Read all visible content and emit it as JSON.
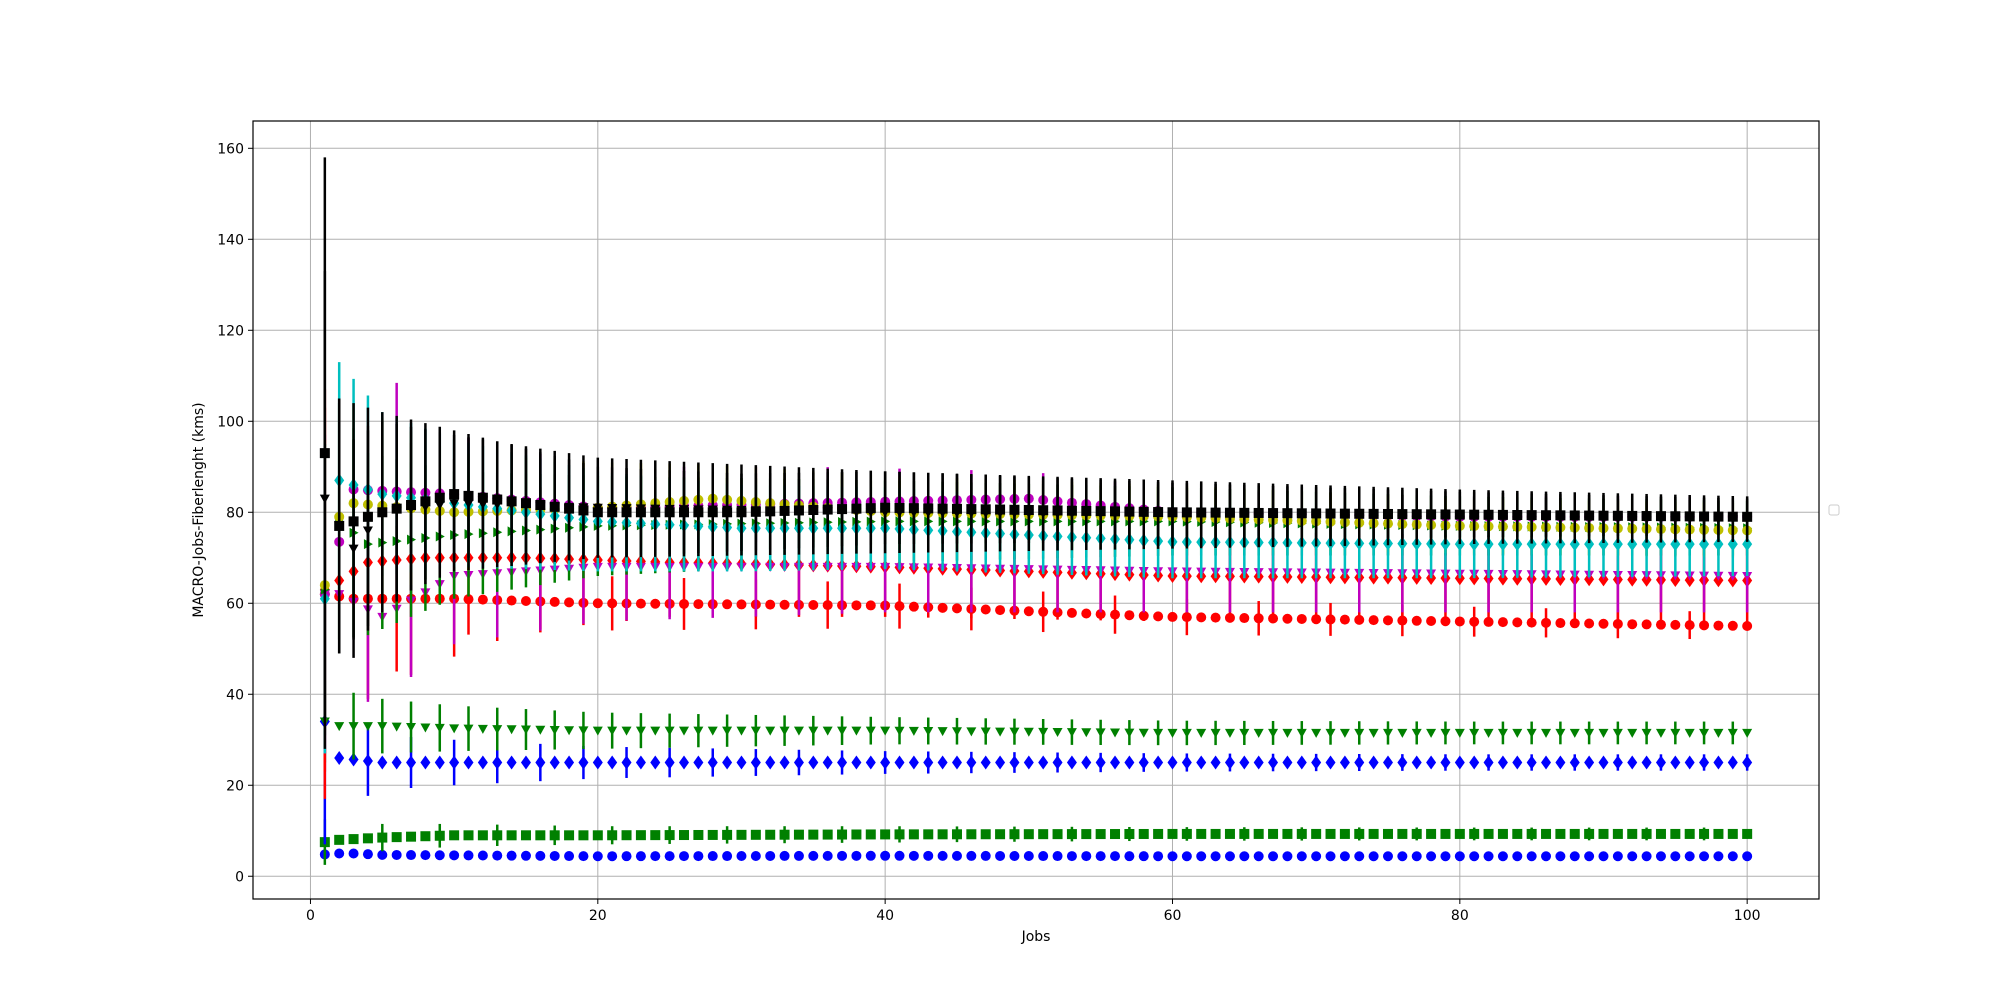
{
  "chart_data": {
    "type": "scatter",
    "title": "",
    "xlabel": "Jobs",
    "ylabel": "MACRO-Jobs-Fiberlenght (kms)",
    "xlim": [
      -4,
      105
    ],
    "ylim": [
      -5,
      166
    ],
    "grid": true,
    "xticks": [
      0,
      20,
      40,
      60,
      80,
      100
    ],
    "yticks": [
      0,
      20,
      40,
      60,
      80,
      100,
      120,
      140,
      160
    ],
    "x_range": [
      1,
      100
    ],
    "legend": {
      "entries": [],
      "placement": "right"
    },
    "series": [
      {
        "color": "#0000ff",
        "marker": "circle",
        "errorbar": false,
        "points": [
          [
            1,
            4.8,
            3.5
          ],
          [
            2,
            5.0,
            3
          ],
          [
            3,
            5.0,
            2.5
          ],
          [
            5,
            4.7,
            2
          ],
          [
            10,
            4.6,
            1.5
          ],
          [
            20,
            4.4,
            1
          ],
          [
            40,
            4.5,
            0.8
          ],
          [
            60,
            4.4,
            0.6
          ],
          [
            80,
            4.4,
            0.5
          ],
          [
            100,
            4.4,
            0.5
          ]
        ]
      },
      {
        "color": "#008000",
        "marker": "square",
        "step": 4,
        "errorbar": true,
        "points": [
          [
            1,
            7.5,
            5
          ],
          [
            2,
            8,
            4
          ],
          [
            5,
            8.5,
            3
          ],
          [
            10,
            9,
            2.5
          ],
          [
            20,
            9,
            2
          ],
          [
            40,
            9.2,
            1.8
          ],
          [
            60,
            9.3,
            1.5
          ],
          [
            80,
            9.3,
            1.4
          ],
          [
            100,
            9.3,
            1.4
          ]
        ]
      },
      {
        "color": "#0000ff",
        "marker": "diamond",
        "step": 3,
        "errorbar": true,
        "points": [
          [
            1,
            34,
            27
          ],
          [
            2,
            26,
            11
          ],
          [
            5,
            25,
            6
          ],
          [
            10,
            25,
            5
          ],
          [
            20,
            25,
            3.5
          ],
          [
            40,
            25,
            2.5
          ],
          [
            60,
            25,
            2
          ],
          [
            80,
            25,
            1.8
          ],
          [
            100,
            25,
            1.8
          ]
        ]
      },
      {
        "color": "#008000",
        "marker": "triangle-down",
        "step": 2,
        "errorbar": true,
        "points": [
          [
            1,
            34,
            9
          ],
          [
            2,
            33,
            8
          ],
          [
            5,
            33,
            6
          ],
          [
            10,
            32.5,
            5
          ],
          [
            20,
            32,
            4
          ],
          [
            40,
            32,
            3
          ],
          [
            60,
            31.5,
            2.7
          ],
          [
            80,
            31.5,
            2.5
          ],
          [
            100,
            31.5,
            2.5
          ]
        ]
      },
      {
        "color": "#ff0000",
        "marker": "circle",
        "step": 5,
        "errorbar": true,
        "points": [
          [
            1,
            62,
            45
          ],
          [
            3,
            61,
            30
          ],
          [
            6,
            61,
            16
          ],
          [
            10,
            61,
            8
          ],
          [
            20,
            60,
            6
          ],
          [
            40,
            59.5,
            5
          ],
          [
            60,
            57,
            4
          ],
          [
            80,
            56,
            3.3
          ],
          [
            100,
            55,
            3
          ]
        ]
      },
      {
        "color": "#ff0000",
        "marker": "diamond",
        "step": 3,
        "errorbar": true,
        "points": [
          [
            1,
            63,
            40
          ],
          [
            2,
            65,
            38
          ],
          [
            4,
            69,
            30
          ],
          [
            8,
            70,
            24
          ],
          [
            15,
            70,
            16
          ],
          [
            25,
            69,
            12
          ],
          [
            40,
            68,
            11
          ],
          [
            60,
            66,
            10
          ],
          [
            80,
            65.5,
            9.5
          ],
          [
            100,
            65,
            9
          ]
        ]
      },
      {
        "color": "#bf00bf",
        "marker": "triangle-down",
        "step": 3,
        "errorbar": true,
        "points": [
          [
            1,
            62,
            30
          ],
          [
            2,
            62,
            25
          ],
          [
            5,
            57,
            18
          ],
          [
            10,
            66,
            15
          ],
          [
            20,
            68,
            12
          ],
          [
            40,
            68,
            10
          ],
          [
            60,
            67,
            9
          ],
          [
            80,
            66.5,
            8.5
          ],
          [
            100,
            66,
            8
          ]
        ]
      },
      {
        "color": "#bf00bf",
        "marker": "circle",
        "step": 5,
        "errorbar": true,
        "points": [
          [
            1,
            62,
            35
          ],
          [
            3,
            85,
            32
          ],
          [
            10,
            84,
            13
          ],
          [
            20,
            81,
            9
          ],
          [
            35,
            82,
            8
          ],
          [
            50,
            83,
            6
          ],
          [
            60,
            80,
            5
          ],
          [
            80,
            79,
            4.5
          ],
          [
            100,
            79,
            4.5
          ]
        ]
      },
      {
        "color": "#008000",
        "marker": "triangle-right",
        "step": 1,
        "errorbar": true,
        "points": [
          [
            1,
            63,
            32
          ],
          [
            2,
            78,
            26
          ],
          [
            4,
            73,
            20
          ],
          [
            10,
            75,
            14
          ],
          [
            20,
            77,
            11
          ],
          [
            40,
            78,
            9
          ],
          [
            60,
            78,
            7.5
          ],
          [
            80,
            77,
            6.5
          ],
          [
            100,
            76.5,
            6
          ]
        ]
      },
      {
        "color": "#bfbf00",
        "marker": "circle",
        "step": 2,
        "errorbar": true,
        "points": [
          [
            1,
            64,
            32
          ],
          [
            2,
            79,
            26
          ],
          [
            3,
            82,
            22
          ],
          [
            10,
            80,
            13
          ],
          [
            20,
            81,
            10
          ],
          [
            28,
            83,
            7.5
          ],
          [
            40,
            80,
            8
          ],
          [
            60,
            79,
            7
          ],
          [
            80,
            77,
            6
          ],
          [
            100,
            76,
            6
          ]
        ]
      },
      {
        "color": "#00bfbf",
        "marker": "diamond",
        "step": 1,
        "errorbar": true,
        "points": [
          [
            1,
            61,
            34
          ],
          [
            2,
            87,
            26
          ],
          [
            5,
            84,
            18
          ],
          [
            10,
            82,
            14
          ],
          [
            20,
            78,
            11
          ],
          [
            30,
            76.5,
            9.5
          ],
          [
            40,
            76.5,
            9
          ],
          [
            60,
            73.5,
            8
          ],
          [
            80,
            73,
            7.5
          ],
          [
            100,
            73,
            7
          ]
        ]
      },
      {
        "color": "#000000",
        "marker": "triangle-down",
        "step": 1,
        "errorbar": true,
        "points": [
          [
            1,
            83,
            50
          ],
          [
            2,
            77,
            28
          ],
          [
            3,
            72,
            24
          ],
          [
            5,
            80,
            20
          ],
          [
            10,
            82,
            15
          ],
          [
            20,
            81,
            11
          ],
          [
            40,
            80,
            9
          ],
          [
            60,
            79.5,
            7.5
          ],
          [
            80,
            79,
            6
          ],
          [
            100,
            78.5,
            5
          ]
        ]
      },
      {
        "color": "#000000",
        "marker": "square",
        "step": 1,
        "errorbar": true,
        "points": [
          [
            1,
            93,
            65
          ],
          [
            2,
            77,
            28
          ],
          [
            5,
            80,
            22
          ],
          [
            10,
            84,
            14
          ],
          [
            20,
            80,
            10
          ],
          [
            30,
            80,
            8.5
          ],
          [
            40,
            81,
            8
          ],
          [
            60,
            80,
            6.5
          ],
          [
            80,
            79.5,
            5
          ],
          [
            100,
            79,
            4
          ]
        ]
      }
    ]
  }
}
